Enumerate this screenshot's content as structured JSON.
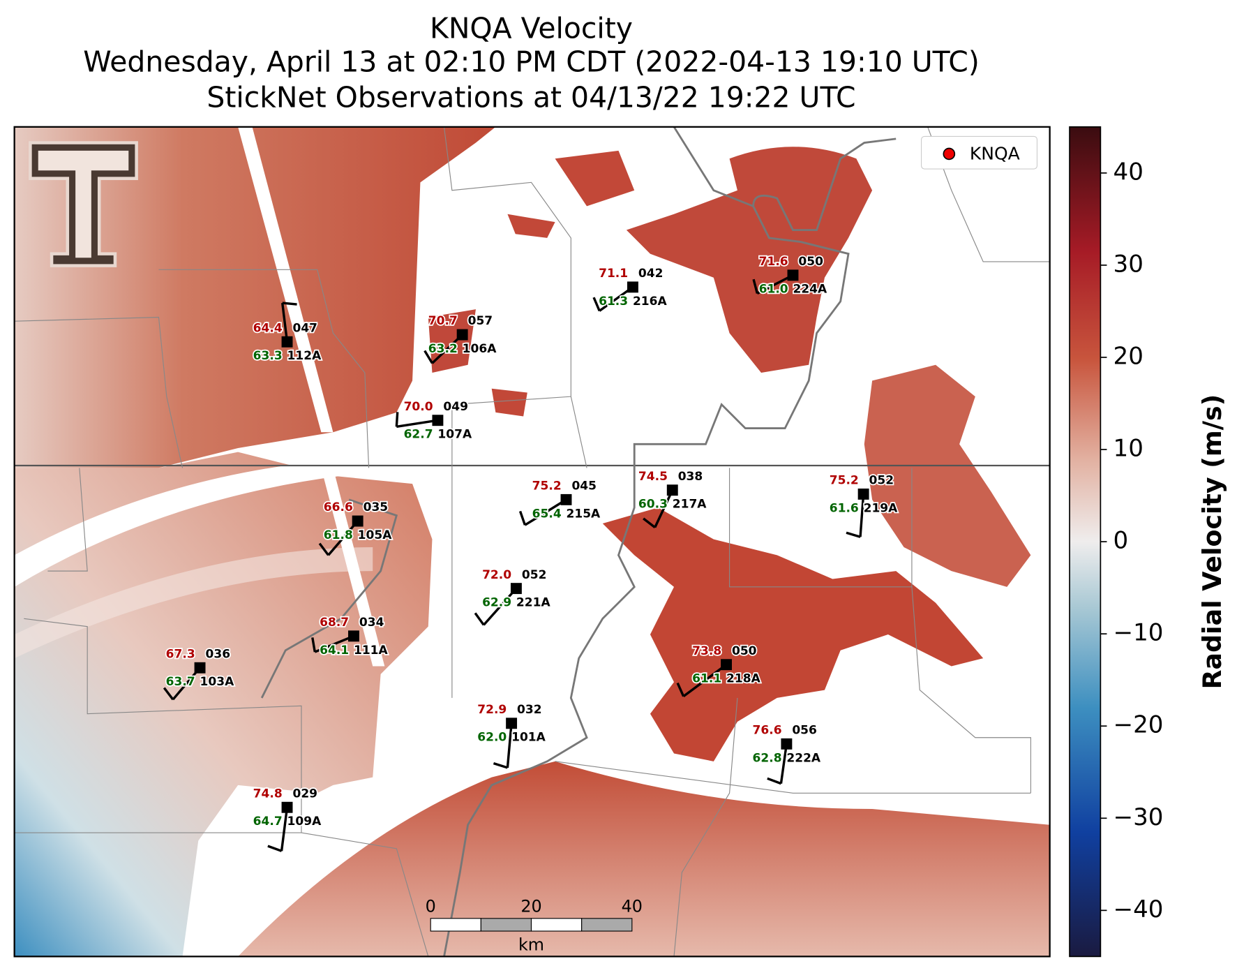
{
  "title": [
    "KNQA Velocity",
    "Wednesday, April 13 at 02:10 PM CDT (2022-04-13 19:10 UTC)",
    "StickNet Observations at 04/13/22 19:22 UTC"
  ],
  "legend": {
    "label": "KNQA"
  },
  "colorbar": {
    "label": "Radial Velocity (m/s)",
    "lim": [
      -45,
      45
    ],
    "ticks": [
      40,
      30,
      20,
      10,
      0,
      {
        "value": -10,
        "label": "−10"
      },
      {
        "value": -20,
        "label": "−20"
      },
      {
        "value": -30,
        "label": "−30"
      },
      {
        "value": -40,
        "label": "−40"
      }
    ]
  },
  "scale_bar": {
    "ticks": [
      0,
      20,
      40
    ],
    "unit": "km"
  },
  "stations": [
    {
      "id": "112A",
      "temperature": "64.4",
      "dewpoint": "63.3",
      "code": "047"
    },
    {
      "id": "106A",
      "temperature": "70.7",
      "dewpoint": "63.2",
      "code": "057"
    },
    {
      "id": "107A",
      "temperature": "70.0",
      "dewpoint": "62.7",
      "code": "049"
    },
    {
      "id": "216A",
      "temperature": "71.1",
      "dewpoint": "61.3",
      "code": "042"
    },
    {
      "id": "224A",
      "temperature": "71.6",
      "dewpoint": "61.0",
      "code": "050"
    },
    {
      "id": "105A",
      "temperature": "66.6",
      "dewpoint": "61.8",
      "code": "035"
    },
    {
      "id": "215A",
      "temperature": "75.2",
      "dewpoint": "65.4",
      "code": "045"
    },
    {
      "id": "217A",
      "temperature": "74.5",
      "dewpoint": "60.3",
      "code": "038"
    },
    {
      "id": "219A",
      "temperature": "75.2",
      "dewpoint": "61.6",
      "code": "052"
    },
    {
      "id": "221A",
      "temperature": "72.0",
      "dewpoint": "62.9",
      "code": "052"
    },
    {
      "id": "111A",
      "temperature": "68.7",
      "dewpoint": "64.1",
      "code": "034"
    },
    {
      "id": "103A",
      "temperature": "67.3",
      "dewpoint": "63.7",
      "code": "036"
    },
    {
      "id": "218A",
      "temperature": "73.8",
      "dewpoint": "61.1",
      "code": "050"
    },
    {
      "id": "101A",
      "temperature": "72.9",
      "dewpoint": "62.0",
      "code": "032"
    },
    {
      "id": "222A",
      "temperature": "76.6",
      "dewpoint": "62.8",
      "code": "056"
    },
    {
      "id": "109A",
      "temperature": "74.8",
      "dewpoint": "64.7",
      "code": "029"
    }
  ]
}
